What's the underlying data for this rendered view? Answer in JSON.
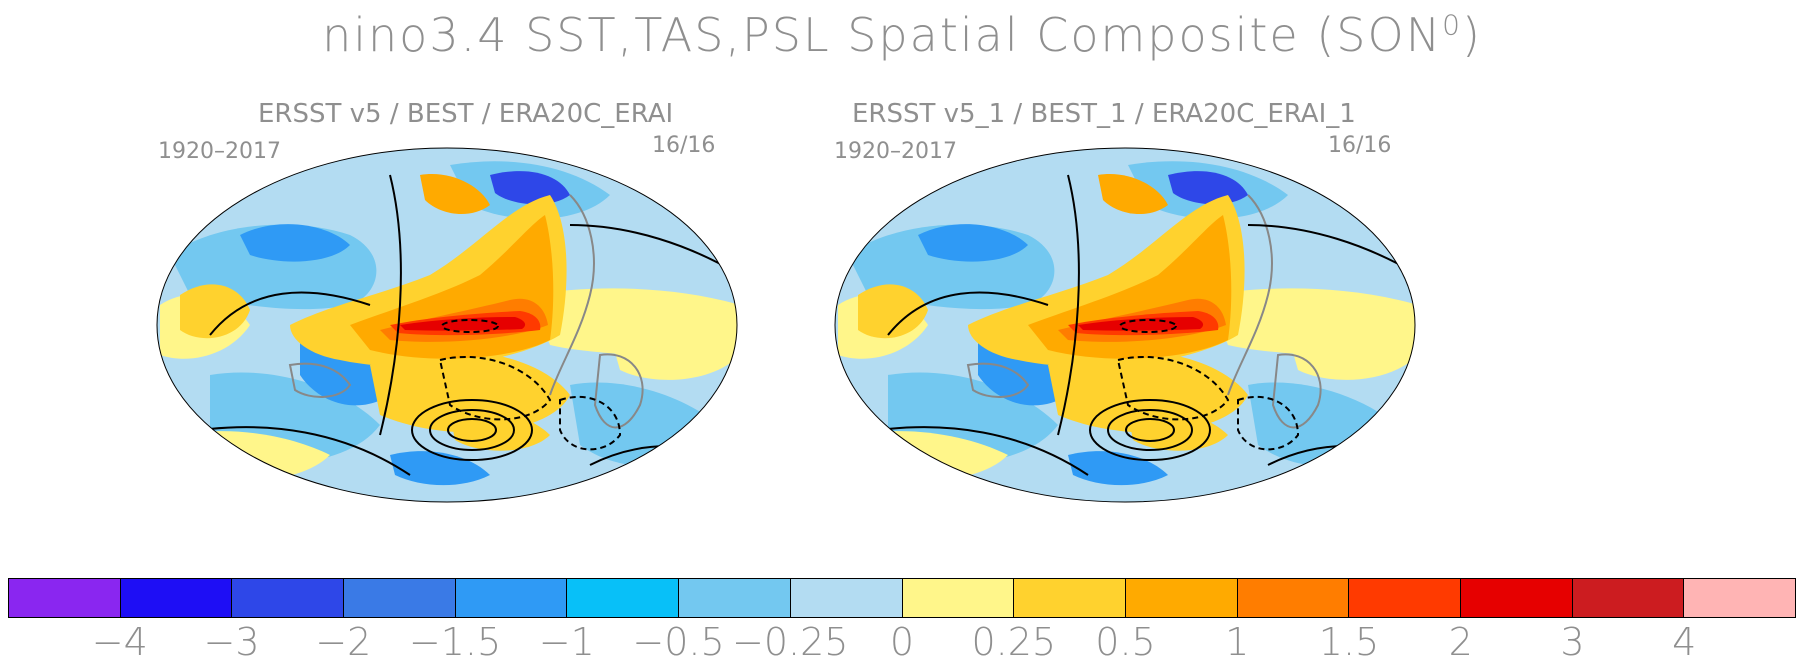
{
  "title": {
    "main": "nino3.4 SST,TAS,PSL Spatial Composite (SON",
    "sup": "0",
    "close": ")"
  },
  "panels": [
    {
      "subtitle": "ERSST v5 / BEST / ERA20C_ERAI",
      "years": "1920–2017",
      "count": "16/16"
    },
    {
      "subtitle": "ERSST v5_1 / BEST_1 / ERA20C_ERAI_1",
      "years": "1920–2017",
      "count": "16/16"
    }
  ],
  "colorbar": {
    "colors": [
      "#8a26f0",
      "#1e0ef5",
      "#2e47e8",
      "#3a7ae6",
      "#2f9af5",
      "#08c0f8",
      "#73c8f0",
      "#b3dcf2",
      "#fff68a",
      "#ffd22e",
      "#ffaa00",
      "#ff7d00",
      "#ff3a00",
      "#e60000",
      "#cc1c20",
      "#ffb4b4"
    ],
    "labels": [
      "−4",
      "−3",
      "−2",
      "−1.5",
      "−1",
      "−0.5",
      "−0.25",
      "0",
      "0.25",
      "0.5",
      "1",
      "1.5",
      "2",
      "3",
      "4"
    ]
  },
  "map_colors": {
    "background": "#b3dcf2",
    "light_blue": "#73c8f0",
    "blue": "#2f9af5",
    "deep_blue": "#2e47e8",
    "pale_yellow": "#fff68a",
    "yellow": "#ffd22e",
    "orange": "#ffaa00",
    "dark_orange": "#ff7d00",
    "red_orange": "#ff3a00",
    "red": "#e60000",
    "land_outline": "#888888",
    "contour": "#000000"
  }
}
